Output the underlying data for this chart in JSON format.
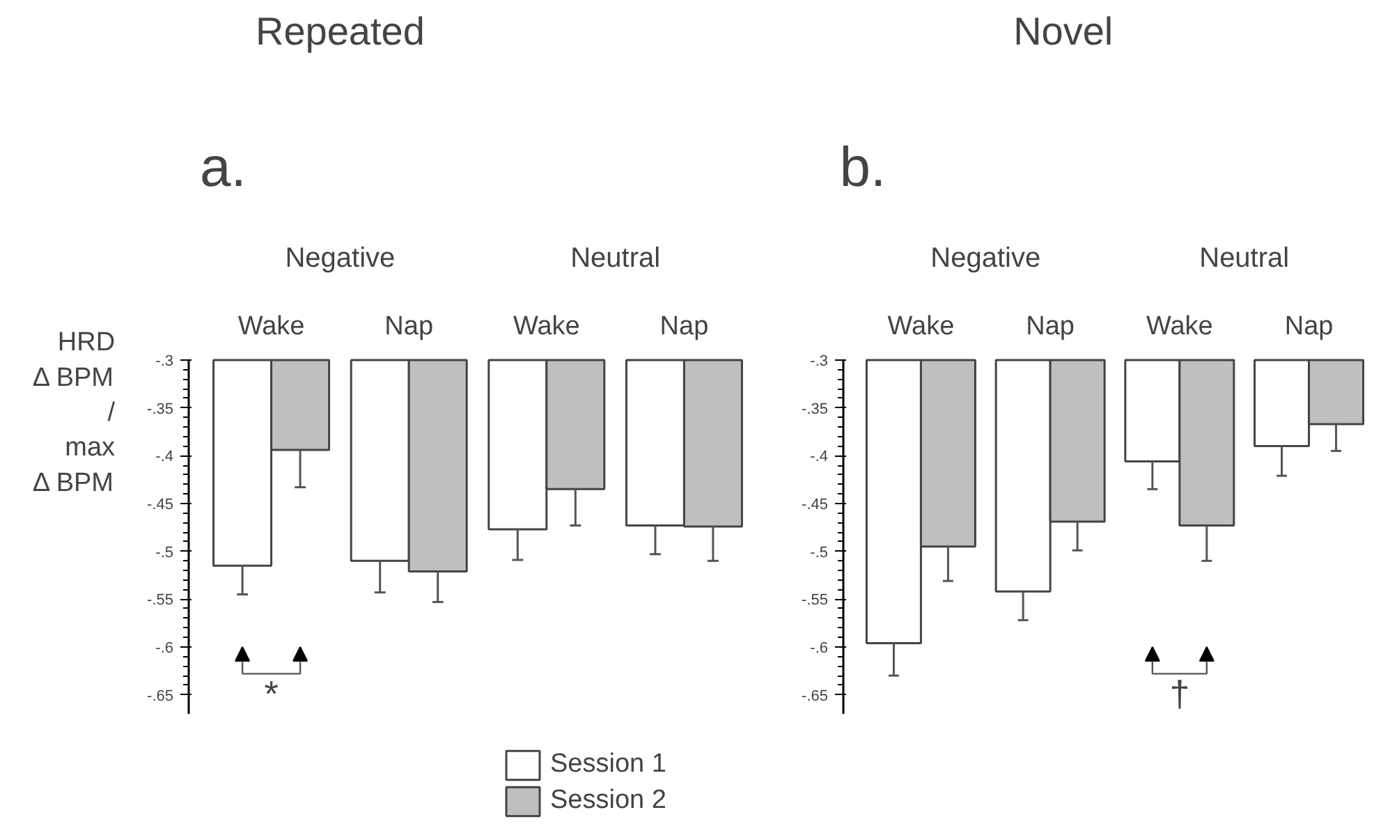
{
  "chart_data": [
    {
      "type": "bar",
      "title": "Repeated",
      "subtitle": "a.",
      "ylabel": "HRD\nΔ BPM\n/\nmax\nΔ BPM",
      "categories": [
        "Wake",
        "Nap",
        "Wake",
        "Nap"
      ],
      "series": [
        {
          "name": "Session 1",
          "color": "#ffffff",
          "values": [
            -0.515,
            -0.51,
            -0.477,
            -0.473
          ],
          "errors": [
            [
              -0.545,
              -0.515
            ],
            [
              -0.543,
              -0.51
            ],
            [
              -0.509,
              -0.477
            ],
            [
              -0.503,
              -0.473
            ]
          ]
        },
        {
          "name": "Session 2",
          "color": "#bfbfbf",
          "values": [
            -0.394,
            -0.521,
            -0.435,
            -0.474
          ],
          "errors": [
            [
              -0.433,
              -0.394
            ],
            [
              -0.553,
              -0.521
            ],
            [
              -0.473,
              -0.435
            ],
            [
              -0.51,
              -0.474
            ]
          ]
        }
      ],
      "ylim": [
        -0.67,
        -0.3
      ],
      "yticks": [
        {
          "value": -0.3,
          "label": "-.3"
        },
        {
          "value": -0.35,
          "label": "-.35"
        },
        {
          "value": -0.4,
          "label": "-.4"
        },
        {
          "value": -0.45,
          "label": "-.45"
        },
        {
          "value": -0.5,
          "label": "-.5"
        },
        {
          "value": -0.55,
          "label": "-.55"
        },
        {
          "value": -0.6,
          "label": "-.6"
        },
        {
          "value": -0.65,
          "label": "-.65"
        }
      ],
      "annotations": [
        "Negative",
        "Neutral",
        "*"
      ],
      "grid": false,
      "legend": "bottom"
    },
    {
      "type": "bar",
      "title": "Novel",
      "subtitle": "b.",
      "categories": [
        "Wake",
        "Nap",
        "Wake",
        "Nap"
      ],
      "series": [
        {
          "color": "#ffffff",
          "values": [
            -0.596,
            -0.542,
            -0.406,
            -0.39
          ],
          "errors": [
            [
              -0.63,
              -0.596
            ],
            [
              -0.572,
              -0.542
            ],
            [
              -0.435,
              -0.406
            ],
            [
              -0.421,
              -0.39
            ]
          ]
        },
        {
          "color": "#bfbfbf",
          "values": [
            -0.495,
            -0.469,
            -0.473,
            -0.367
          ],
          "errors": [
            [
              -0.531,
              -0.495
            ],
            [
              -0.499,
              -0.469
            ],
            [
              -0.51,
              -0.473
            ],
            [
              -0.395,
              -0.367
            ]
          ]
        }
      ],
      "ylim": [
        -0.67,
        -0.3
      ],
      "yticks": [
        {
          "value": -0.3,
          "label": "-.3"
        },
        {
          "value": -0.35,
          "label": "-.35"
        },
        {
          "value": -0.4,
          "label": "-.4"
        },
        {
          "value": -0.45,
          "label": "-.45"
        },
        {
          "value": -0.5,
          "label": "-.5"
        },
        {
          "value": -0.55,
          "label": "-.55"
        },
        {
          "value": -0.6,
          "label": "-.6"
        },
        {
          "value": -0.65,
          "label": "-.65"
        }
      ],
      "annotations": [
        "Negative",
        "Neutral",
        "†"
      ],
      "grid": false
    }
  ]
}
